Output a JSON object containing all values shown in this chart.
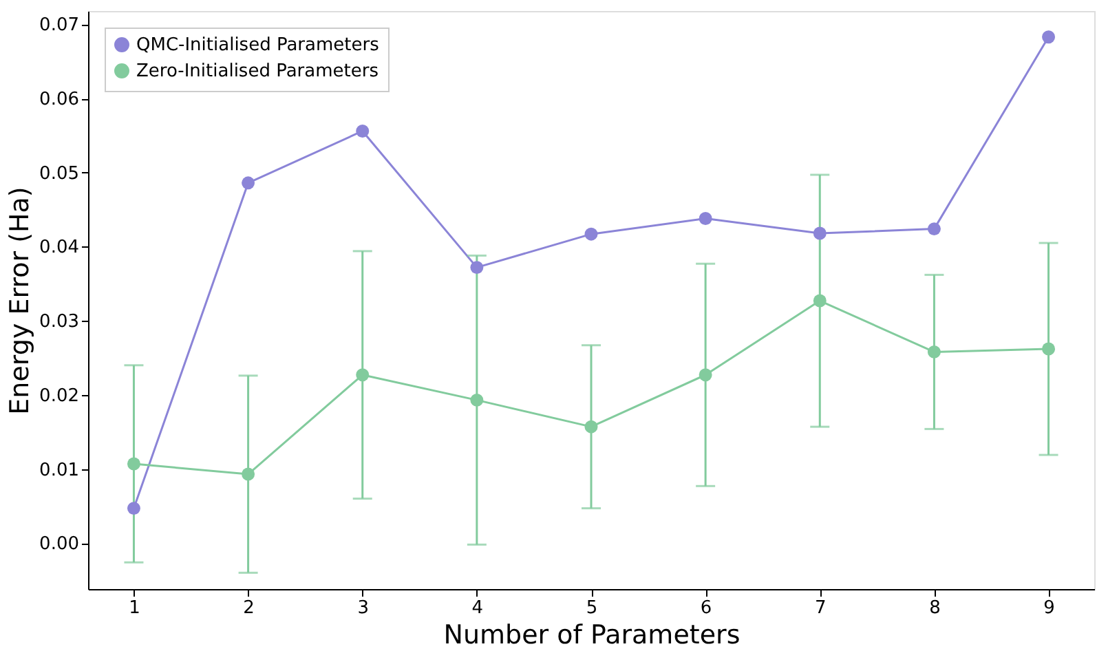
{
  "chart_data": {
    "type": "line",
    "xlabel": "Number of Parameters",
    "ylabel": "Energy Error (Ha)",
    "x": [
      1,
      2,
      3,
      4,
      5,
      6,
      7,
      8,
      9
    ],
    "xlim": [
      0.6,
      9.4
    ],
    "xticks": [
      1,
      2,
      3,
      4,
      5,
      6,
      7,
      8,
      9
    ],
    "ylim": [
      -0.0062,
      0.0718
    ],
    "yticks": [
      {
        "value": 0,
        "label": "0.00"
      },
      {
        "value": 0.01,
        "label": "0.01"
      },
      {
        "value": 0.02,
        "label": "0.02"
      },
      {
        "value": 0.03,
        "label": "0.03"
      },
      {
        "value": 0.04,
        "label": "0.04"
      },
      {
        "value": 0.05,
        "label": "0.05"
      },
      {
        "value": 0.06,
        "label": "0.06"
      },
      {
        "value": 0.07,
        "label": "0.07"
      }
    ],
    "legend": "top left",
    "marker": "circle",
    "series": [
      {
        "name": "QMC-Initialised Parameters",
        "color": "#8b84d7",
        "values": [
          0.0047,
          0.0486,
          0.0556,
          0.0372,
          0.0417,
          0.0438,
          0.0418,
          0.0424,
          0.0683
        ]
      },
      {
        "name": "Zero-Initialised Parameters",
        "color": "#82cb9d",
        "values": [
          0.0107,
          0.0093,
          0.0227,
          0.0193,
          0.0157,
          0.0227,
          0.0327,
          0.0258,
          0.0262
        ],
        "errors": [
          0.0133,
          0.0133,
          0.0167,
          0.0195,
          0.011,
          0.015,
          0.017,
          0.0104,
          0.0143
        ]
      }
    ]
  }
}
